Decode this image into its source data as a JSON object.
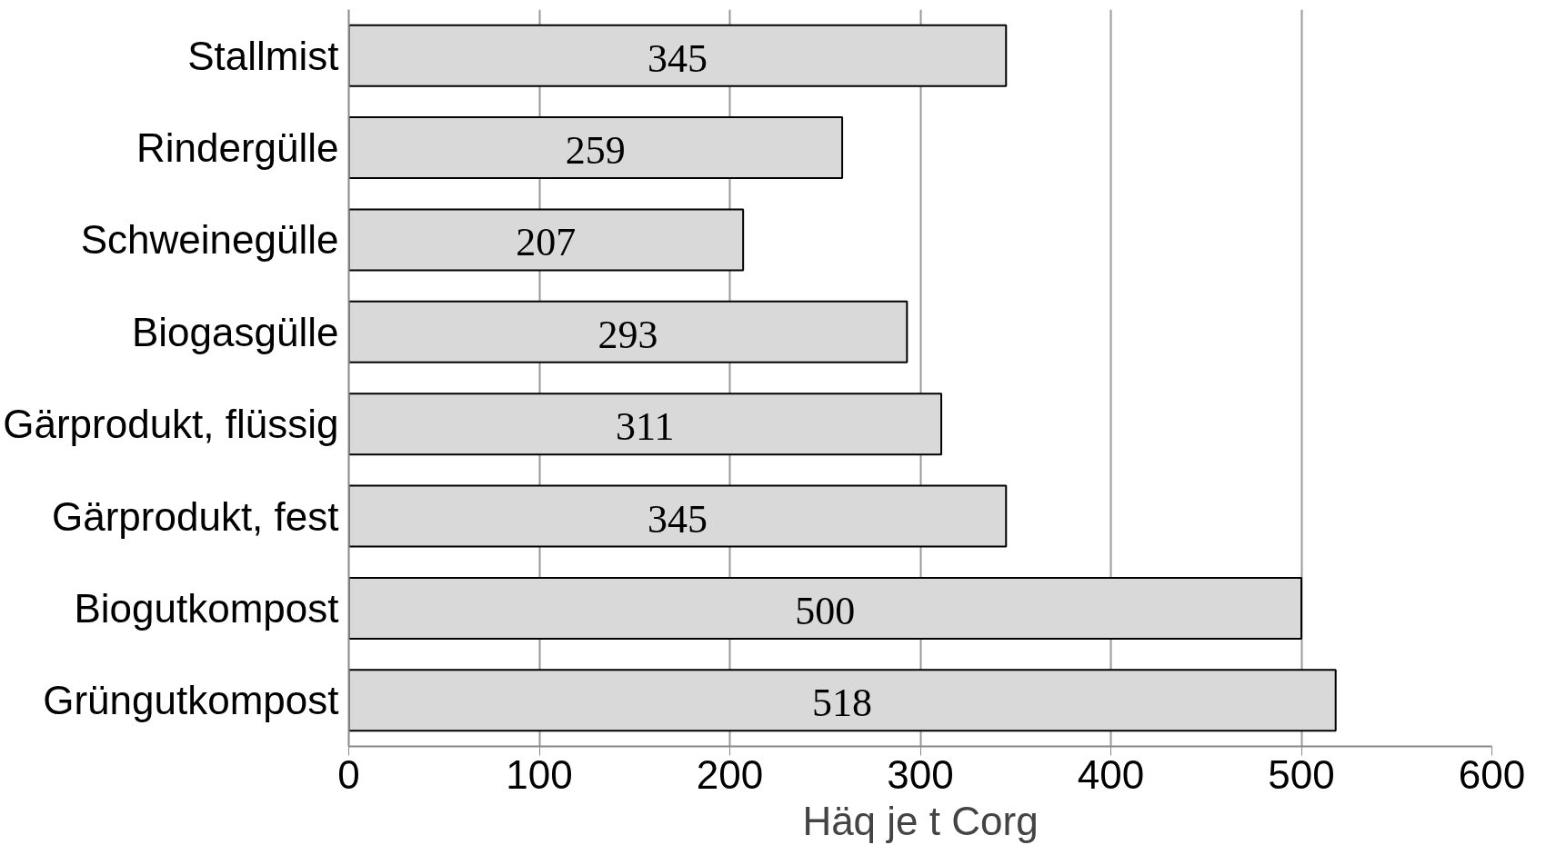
{
  "chart_data": {
    "type": "bar",
    "orientation": "horizontal",
    "xlabel": "Häq je t Corg",
    "categories": [
      "Stallmist",
      "Rindergülle",
      "Schweinegülle",
      "Biogasgülle",
      "Gärprodukt, flüssig",
      "Gärprodukt, fest",
      "Biogutkompost",
      "Grüngutkompost"
    ],
    "values": [
      345,
      259,
      207,
      293,
      311,
      345,
      500,
      518
    ],
    "color": "#d9d9d9",
    "xlim": [
      0,
      600
    ],
    "xticks": [
      0,
      100,
      200,
      300,
      400,
      500,
      600
    ],
    "grid": "x",
    "data_labels": true
  }
}
